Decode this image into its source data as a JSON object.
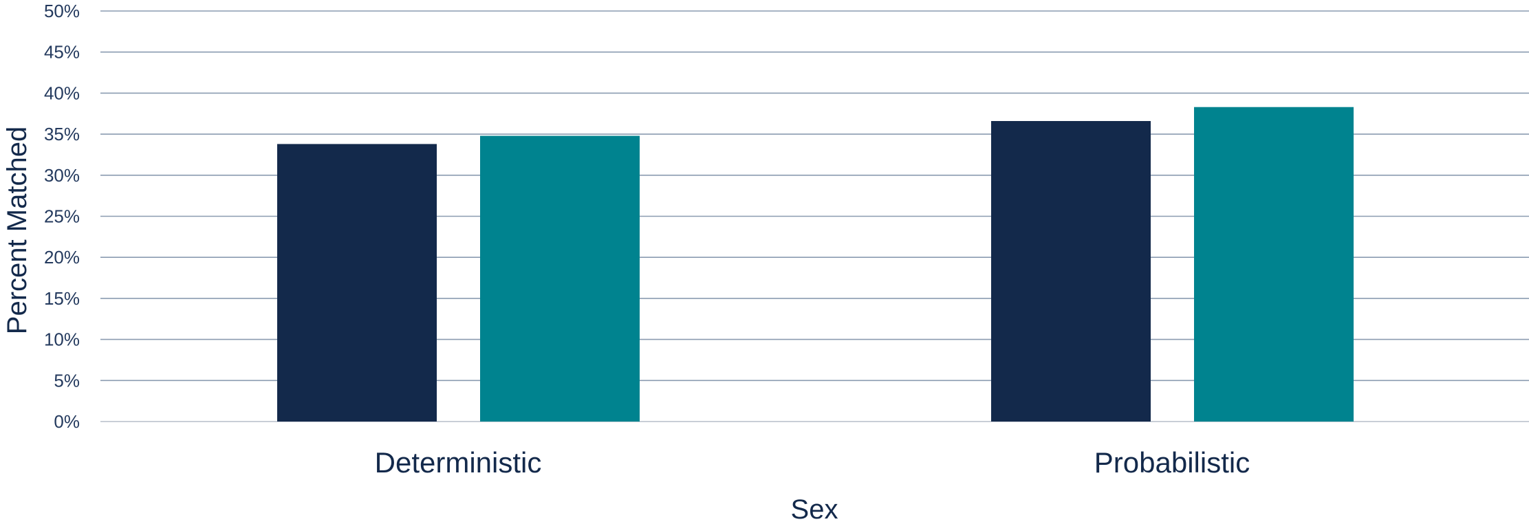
{
  "chart_data": {
    "type": "bar",
    "title": "",
    "xlabel": "Sex",
    "ylabel": "Percent Matched",
    "categories": [
      "Deterministic",
      "Probabilistic"
    ],
    "series": [
      {
        "values": [
          0.338,
          0.366
        ],
        "color": "#13294B"
      },
      {
        "values": [
          0.348,
          0.383
        ],
        "color": "#00838F"
      }
    ],
    "ylim": [
      0,
      0.5
    ],
    "yticks": [
      0,
      0.05,
      0.1,
      0.15,
      0.2,
      0.25,
      0.3,
      0.35,
      0.4,
      0.45,
      0.5
    ],
    "ytick_labels": [
      "0%",
      "5%",
      "10%",
      "15%",
      "20%",
      "25%",
      "30%",
      "35%",
      "40%",
      "45%",
      "50%"
    ],
    "grid": true,
    "legend": "none"
  },
  "colors": {
    "gridline": "#8A9BB0",
    "axis_baseline": "#C8CED6"
  }
}
